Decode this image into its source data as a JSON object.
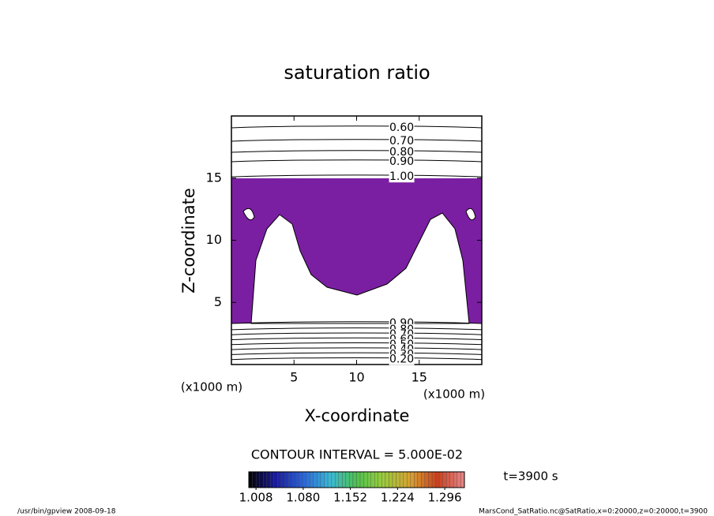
{
  "chart_data": {
    "type": "contour",
    "title": "saturation ratio",
    "x_label": "X-coordinate",
    "y_label": "Z-coordinate",
    "x_unit": "(x1000 m)",
    "y_unit": "(x1000 m)",
    "xlim": [
      0,
      20
    ],
    "xticks": [
      5,
      10,
      15
    ],
    "ylim": [
      0,
      20
    ],
    "yticks": [
      5,
      10,
      15
    ],
    "fill_color": "#7b1fa2",
    "contours": [
      {
        "level": 0.6,
        "label": "0.60",
        "z": 19.05
      },
      {
        "level": 0.7,
        "label": "0.70",
        "z": 17.97
      },
      {
        "level": 0.8,
        "label": "0.80",
        "z": 17.08
      },
      {
        "level": 0.9,
        "label": "0.90",
        "z": 16.32
      },
      {
        "level": 1.0,
        "label": "1.00",
        "z": 15.1
      },
      {
        "level": 0.9,
        "label": "0.90",
        "z": 3.3
      },
      {
        "level": 0.8,
        "label": "0.80",
        "z": 2.8
      },
      {
        "level": 0.7,
        "label": "0.70",
        "z": 2.4
      },
      {
        "level": 0.6,
        "label": "0.60",
        "z": 2.0
      },
      {
        "level": 0.5,
        "label": "0.50",
        "z": 1.6
      },
      {
        "level": 0.4,
        "label": "0.40",
        "z": 1.2
      },
      {
        "level": 0.3,
        "label": "0.30",
        "z": 0.8
      },
      {
        "level": 0.2,
        "label": "0.20",
        "z": 0.4
      }
    ],
    "label_x": 13.6,
    "contour_interval_label": "CONTOUR INTERVAL = 5.000E-02",
    "time_label": "t=3900 s",
    "colorbar": {
      "clim": [
        0.997,
        1.326
      ],
      "ticks": [
        1.008,
        {
          "value": 1.08,
          "label": "1.080"
        },
        1.152,
        1.224,
        1.296
      ],
      "colormap": [
        "#000000",
        "#1a1a9c",
        "#2a63d8",
        "#38b8d8",
        "#4ec24e",
        "#9ccc3c",
        "#d8a030",
        "#c8401e",
        "#e88888"
      ]
    },
    "footer_left": "/usr/bin/gpview   2008-09-18",
    "footer_right": "MarsCond_SatRatio.nc@SatRatio,x=0:20000,z=0:20000,t=3900"
  }
}
